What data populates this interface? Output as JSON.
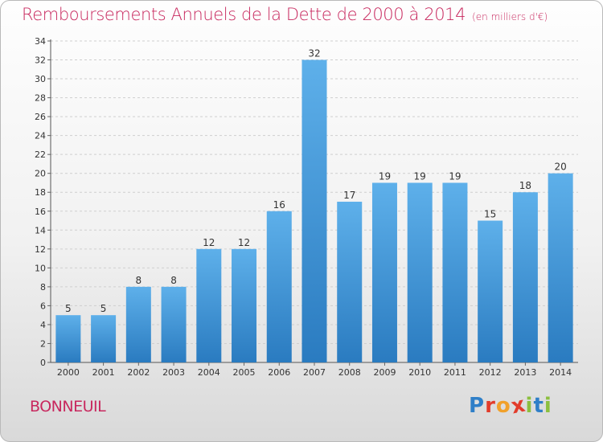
{
  "title": "Remboursements Annuels de la Dette de 2000 à 2014",
  "subtitle": "(en milliers d'€)",
  "commune": "BONNEUIL",
  "logo": {
    "text": "Proxiti",
    "letters": [
      {
        "ch": "P",
        "color": "#2f7fc8"
      },
      {
        "ch": "r",
        "color": "#e23c2b"
      },
      {
        "ch": "o",
        "color": "#f1a12b"
      },
      {
        "ch": "x",
        "color": "#e23c2b"
      },
      {
        "ch": "i",
        "color": "#8cbf3f"
      },
      {
        "ch": "t",
        "color": "#2f7fc8"
      },
      {
        "ch": "i",
        "color": "#8cbf3f"
      }
    ]
  },
  "colors": {
    "title": "#c8285e",
    "bar_light": "#5eb0ea",
    "bar_dark": "#2a7bc0",
    "grid": "#cfcfcf"
  },
  "chart_data": {
    "type": "bar",
    "categories": [
      "2000",
      "2001",
      "2002",
      "2003",
      "2004",
      "2005",
      "2006",
      "2007",
      "2008",
      "2009",
      "2010",
      "2011",
      "2012",
      "2013",
      "2014"
    ],
    "values": [
      5,
      5,
      8,
      8,
      12,
      12,
      16,
      32,
      17,
      19,
      19,
      19,
      15,
      18,
      20
    ],
    "ylim": [
      0,
      34
    ],
    "yticks": [
      0,
      2,
      4,
      6,
      8,
      10,
      12,
      14,
      16,
      18,
      20,
      22,
      24,
      26,
      28,
      30,
      32,
      34
    ],
    "grid": true,
    "data_labels": true
  }
}
